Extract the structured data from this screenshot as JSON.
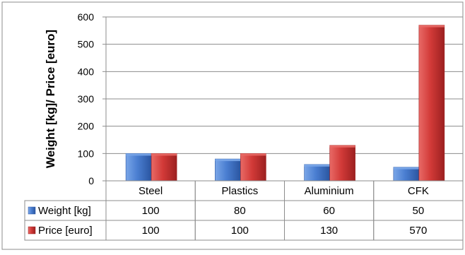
{
  "chart_data": {
    "type": "bar",
    "ylabel": "Weight [kg]/ Price [euro]",
    "categories": [
      "Steel",
      "Plastics",
      "Aluminium",
      "CFK"
    ],
    "ylim": [
      0,
      600
    ],
    "yticks": [
      0,
      100,
      200,
      300,
      400,
      500,
      600
    ],
    "grid": "horizontal",
    "legend": "data-table",
    "series": [
      {
        "name": "Weight [kg]",
        "values": [
          100,
          80,
          60,
          50
        ],
        "color": "#4a7ed1",
        "dark": "#2a55a0",
        "light": "#7aa6e8"
      },
      {
        "name": "Price [euro]",
        "values": [
          100,
          100,
          130,
          570
        ],
        "color": "#d23a38",
        "dark": "#9c2020",
        "light": "#e86a66"
      }
    ],
    "table_rows": [
      {
        "label": "Weight [kg]",
        "values": [
          "100",
          "80",
          "60",
          "50"
        ]
      },
      {
        "label": "Price [euro]",
        "values": [
          "100",
          "100",
          "130",
          "570"
        ]
      }
    ]
  }
}
